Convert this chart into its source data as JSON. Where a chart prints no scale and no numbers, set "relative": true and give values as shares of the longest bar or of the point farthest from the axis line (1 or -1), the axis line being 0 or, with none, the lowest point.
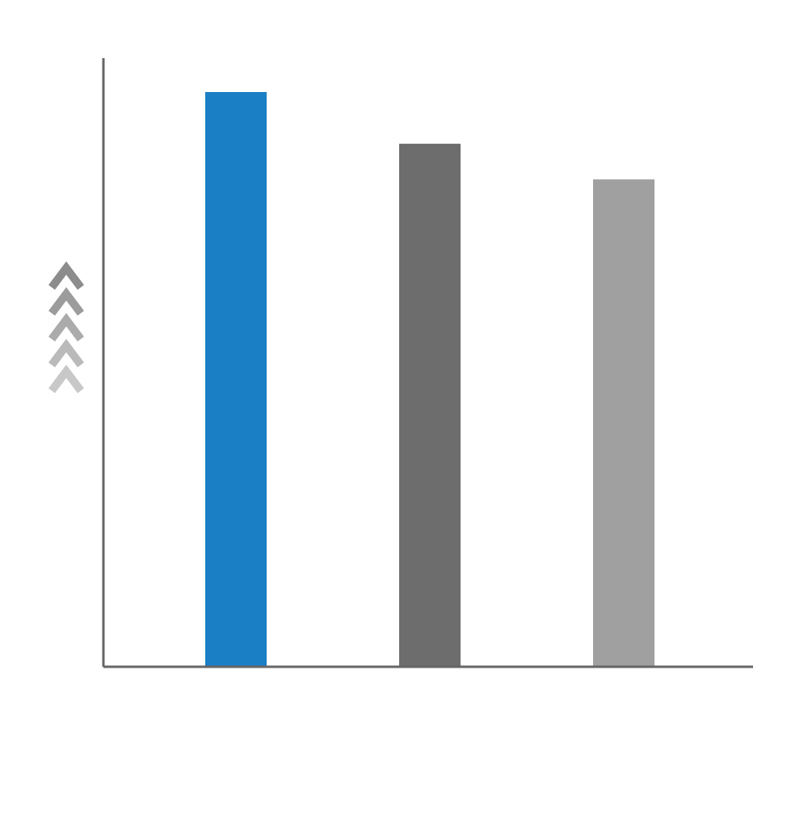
{
  "chart_data": {
    "type": "bar",
    "relative": true,
    "categories": [
      null,
      null,
      null
    ],
    "values": [
      1,
      0.91,
      0.848
    ],
    "colors": [
      "#1a7fc4",
      "#6d6d6d",
      "#a0a0a0"
    ]
  }
}
